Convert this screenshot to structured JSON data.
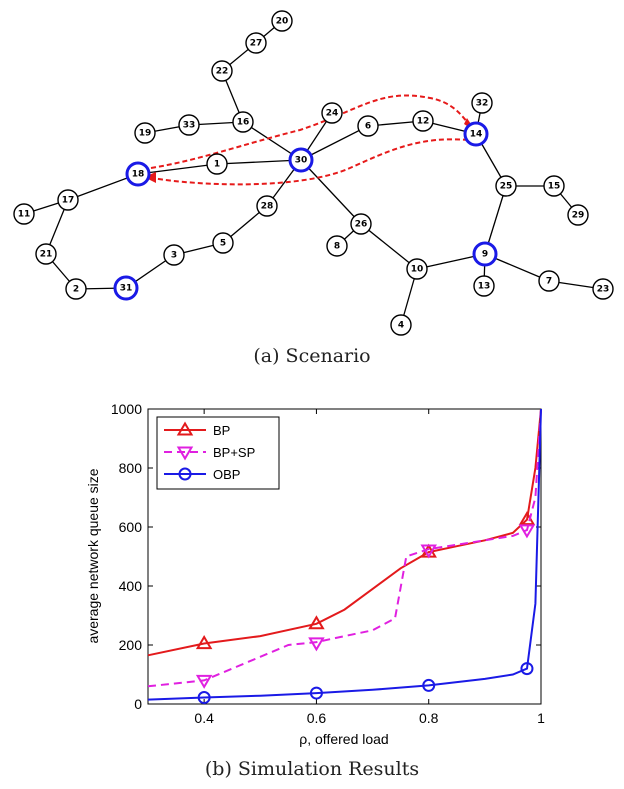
{
  "figure": {
    "caption_a": "(a) Scenario",
    "caption_b": "(b) Simulation Results"
  },
  "network": {
    "highlighted_color": "#1a1ae6",
    "route_color": "#e61a1a",
    "nodes": [
      {
        "id": "20",
        "highlighted": false
      },
      {
        "id": "27",
        "highlighted": false
      },
      {
        "id": "22",
        "highlighted": false
      },
      {
        "id": "32",
        "highlighted": false
      },
      {
        "id": "24",
        "highlighted": false
      },
      {
        "id": "19",
        "highlighted": false
      },
      {
        "id": "33",
        "highlighted": false
      },
      {
        "id": "16",
        "highlighted": false
      },
      {
        "id": "6",
        "highlighted": false
      },
      {
        "id": "12",
        "highlighted": false
      },
      {
        "id": "14",
        "highlighted": true
      },
      {
        "id": "30",
        "highlighted": true
      },
      {
        "id": "1",
        "highlighted": false
      },
      {
        "id": "18",
        "highlighted": true
      },
      {
        "id": "17",
        "highlighted": false
      },
      {
        "id": "11",
        "highlighted": false
      },
      {
        "id": "25",
        "highlighted": false
      },
      {
        "id": "15",
        "highlighted": false
      },
      {
        "id": "29",
        "highlighted": false
      },
      {
        "id": "28",
        "highlighted": false
      },
      {
        "id": "26",
        "highlighted": false
      },
      {
        "id": "21",
        "highlighted": false
      },
      {
        "id": "5",
        "highlighted": false
      },
      {
        "id": "8",
        "highlighted": false
      },
      {
        "id": "9",
        "highlighted": true
      },
      {
        "id": "3",
        "highlighted": false
      },
      {
        "id": "10",
        "highlighted": false
      },
      {
        "id": "13",
        "highlighted": false
      },
      {
        "id": "7",
        "highlighted": false
      },
      {
        "id": "2",
        "highlighted": false
      },
      {
        "id": "31",
        "highlighted": true
      },
      {
        "id": "23",
        "highlighted": false
      },
      {
        "id": "4",
        "highlighted": false
      }
    ],
    "edges": [
      [
        "20",
        "27"
      ],
      [
        "27",
        "22"
      ],
      [
        "22",
        "16"
      ],
      [
        "19",
        "33"
      ],
      [
        "33",
        "16"
      ],
      [
        "16",
        "30"
      ],
      [
        "24",
        "30"
      ],
      [
        "6",
        "30"
      ],
      [
        "6",
        "12"
      ],
      [
        "12",
        "14"
      ],
      [
        "14",
        "32"
      ],
      [
        "14",
        "25"
      ],
      [
        "25",
        "15"
      ],
      [
        "15",
        "29"
      ],
      [
        "25",
        "9"
      ],
      [
        "9",
        "13"
      ],
      [
        "9",
        "7"
      ],
      [
        "7",
        "23"
      ],
      [
        "9",
        "10"
      ],
      [
        "10",
        "4"
      ],
      [
        "10",
        "26"
      ],
      [
        "26",
        "8"
      ],
      [
        "26",
        "30"
      ],
      [
        "30",
        "1"
      ],
      [
        "1",
        "18"
      ],
      [
        "18",
        "17"
      ],
      [
        "17",
        "11"
      ],
      [
        "17",
        "21"
      ],
      [
        "21",
        "2"
      ],
      [
        "2",
        "31"
      ],
      [
        "31",
        "3"
      ],
      [
        "3",
        "5"
      ],
      [
        "5",
        "28"
      ],
      [
        "28",
        "30"
      ]
    ]
  },
  "chart_data": {
    "type": "line",
    "title": "",
    "xlabel": "ρ, offered load",
    "ylabel": "average network queue size",
    "xlim": [
      0.3,
      1.0
    ],
    "ylim": [
      0,
      1000
    ],
    "xticks": [
      0.4,
      0.6,
      0.8,
      1
    ],
    "xtick_labels": [
      "0.4",
      "0.6",
      "0.8",
      "1"
    ],
    "yticks": [
      0,
      200,
      400,
      600,
      800,
      1000
    ],
    "ytick_labels": [
      "0",
      "200",
      "400",
      "600",
      "800",
      "1000"
    ],
    "grid": false,
    "legend_position": "top-left",
    "series": [
      {
        "name": "BP",
        "color": "#e31a1c",
        "dash": "solid",
        "marker": "triangle-up",
        "x": [
          0.3,
          0.4,
          0.5,
          0.6,
          0.65,
          0.7,
          0.75,
          0.8,
          0.85,
          0.9,
          0.95,
          0.975,
          0.99,
          1.0
        ],
        "y": [
          165,
          205,
          230,
          272,
          320,
          390,
          460,
          515,
          535,
          555,
          580,
          625,
          800,
          1000
        ],
        "marker_x": [
          0.4,
          0.6,
          0.8,
          0.975
        ],
        "marker_y": [
          205,
          272,
          515,
          625
        ]
      },
      {
        "name": "BP+SP",
        "color": "#e020e0",
        "dash": "dashed",
        "marker": "triangle-down",
        "x": [
          0.3,
          0.4,
          0.5,
          0.55,
          0.6,
          0.65,
          0.7,
          0.74,
          0.76,
          0.8,
          0.85,
          0.9,
          0.95,
          0.975,
          0.99,
          1.0
        ],
        "y": [
          60,
          80,
          160,
          200,
          210,
          230,
          250,
          290,
          500,
          525,
          540,
          555,
          570,
          590,
          700,
          1000
        ],
        "marker_x": [
          0.4,
          0.6,
          0.8,
          0.975
        ],
        "marker_y": [
          80,
          207,
          522,
          590
        ]
      },
      {
        "name": "OBP",
        "color": "#1a1ae6",
        "dash": "solid",
        "marker": "circle",
        "x": [
          0.3,
          0.4,
          0.5,
          0.6,
          0.7,
          0.8,
          0.9,
          0.95,
          0.975,
          0.99,
          1.0
        ],
        "y": [
          15,
          22,
          28,
          37,
          48,
          63,
          85,
          100,
          120,
          340,
          1000
        ],
        "marker_x": [
          0.4,
          0.6,
          0.8,
          0.975
        ],
        "marker_y": [
          22,
          37,
          63,
          120
        ]
      }
    ]
  }
}
